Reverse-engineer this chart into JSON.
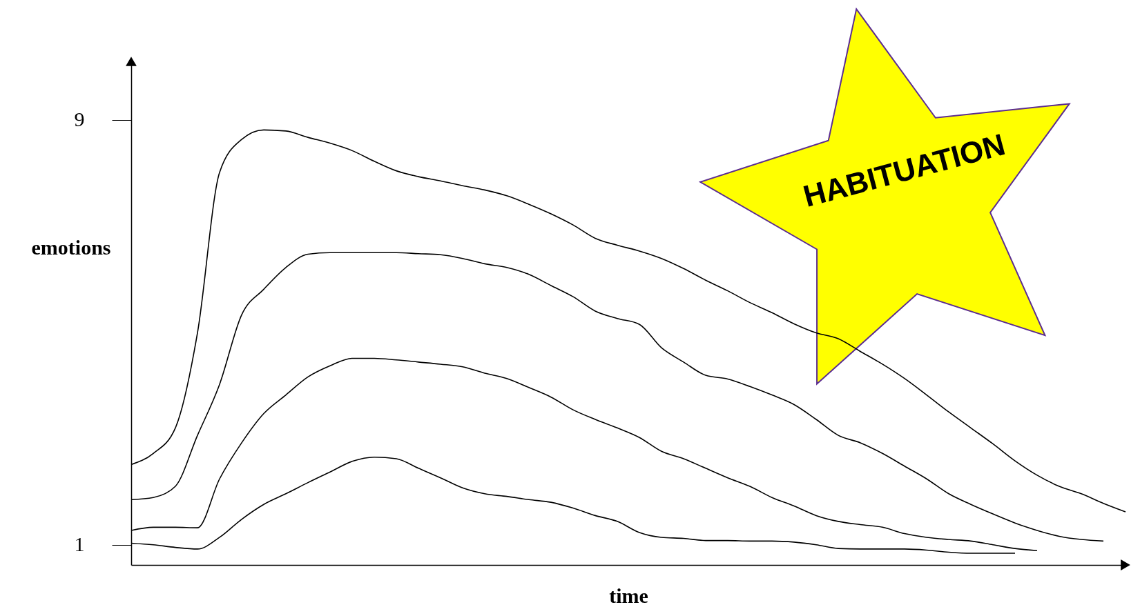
{
  "chart_data": {
    "type": "line",
    "xlabel": "time",
    "ylabel": "emotions",
    "annotations": [
      "HABITUATION"
    ],
    "categories": [
      null,
      null,
      null,
      null,
      null,
      null,
      null,
      null,
      null,
      null,
      null,
      null,
      null,
      null,
      null,
      null,
      null,
      null,
      null,
      null,
      null,
      null,
      null,
      null,
      null,
      null,
      null,
      null,
      null,
      null,
      null,
      null,
      null,
      null,
      null,
      null,
      null,
      null,
      null,
      null,
      null,
      null,
      null,
      null,
      null,
      null
    ],
    "series": [
      {
        "color": "#000000",
        "values": [
          2.51,
          2.72,
          3.2,
          4.99,
          8.01,
          8.63,
          8.81,
          8.79,
          8.67,
          8.56,
          8.42,
          8.22,
          8.04,
          7.93,
          7.85,
          7.76,
          7.68,
          7.57,
          7.41,
          7.23,
          7.02,
          6.77,
          6.64,
          6.53,
          6.39,
          6.2,
          5.98,
          5.78,
          5.56,
          5.37,
          5.16,
          4.99,
          4.88,
          4.64,
          4.4,
          4.13,
          3.82,
          3.5,
          3.2,
          2.9,
          2.58,
          2.31,
          2.1,
          1.96,
          1.78,
          1.62
        ]
      },
      {
        "color": "#000000",
        "values": [
          1.85,
          1.89,
          2.1,
          3.06,
          4.02,
          5.33,
          5.81,
          6.22,
          6.47,
          6.5,
          6.5,
          6.5,
          6.5,
          6.48,
          6.46,
          6.39,
          6.29,
          6.22,
          6.09,
          5.88,
          5.67,
          5.4,
          5.26,
          5.15,
          4.71,
          4.44,
          4.19,
          4.12,
          3.98,
          3.82,
          3.64,
          3.36,
          3.06,
          2.92,
          2.72,
          2.48,
          2.24,
          1.96,
          1.76,
          1.58,
          1.41,
          1.27,
          1.16,
          1.1,
          1.07,
          null
        ]
      },
      {
        "color": "#000000",
        "values": [
          1.27,
          1.33,
          1.33,
          1.32,
          2.24,
          2.92,
          3.47,
          3.82,
          4.16,
          4.37,
          4.51,
          4.51,
          4.48,
          4.44,
          4.4,
          4.35,
          4.23,
          4.13,
          3.96,
          3.78,
          3.54,
          3.36,
          3.2,
          3.02,
          2.76,
          2.62,
          2.44,
          2.26,
          2.1,
          1.89,
          1.73,
          1.55,
          1.44,
          1.38,
          1.33,
          1.21,
          1.14,
          1.1,
          1.07,
          1.0,
          0.93,
          0.89,
          null,
          null,
          null,
          null
        ]
      },
      {
        "color": "#000000",
        "values": [
          1.03,
          1.0,
          0.95,
          0.92,
          1.14,
          1.48,
          1.76,
          1.96,
          2.17,
          2.37,
          2.57,
          2.65,
          2.62,
          2.44,
          2.26,
          2.07,
          1.96,
          1.91,
          1.85,
          1.8,
          1.69,
          1.55,
          1.44,
          1.23,
          1.14,
          1.12,
          1.08,
          1.08,
          1.07,
          1.07,
          1.05,
          1.0,
          0.93,
          0.92,
          0.92,
          0.92,
          0.9,
          0.86,
          0.84,
          0.84,
          0.84,
          null,
          null,
          null,
          null,
          null
        ]
      }
    ],
    "ylim": [
      0.62,
      10.1
    ],
    "yticks": [
      1,
      9
    ],
    "tick_labels": "y",
    "grid": false,
    "marker": "none",
    "line_style": "solid"
  }
}
